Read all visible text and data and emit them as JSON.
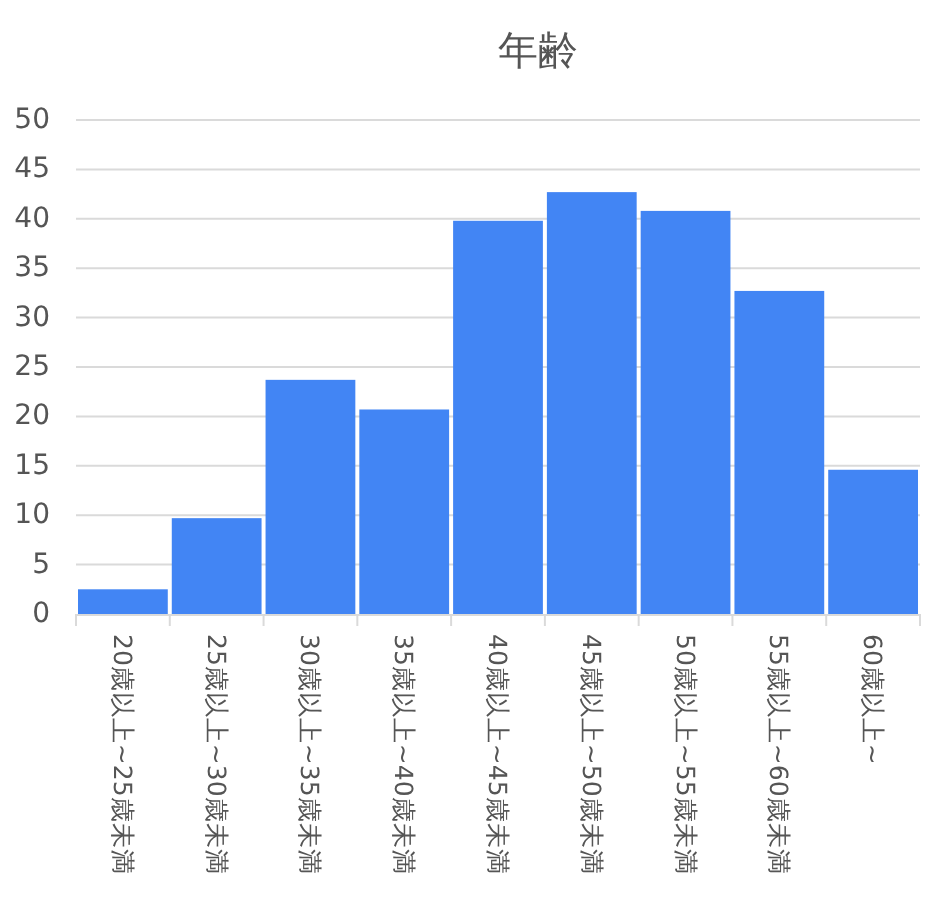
{
  "chart_data": {
    "type": "bar",
    "title": "年齢",
    "categories": [
      "20歳以上~25歳未満",
      "25歳以上~30歳未満",
      "30歳以上~35歳未満",
      "35歳以上~40歳未満",
      "40歳以上~45歳未満",
      "45歳以上~50歳未満",
      "50歳以上~55歳未満",
      "55歳以上~60歳未満",
      "60歳以上~"
    ],
    "values": [
      2.5,
      9.7,
      23.7,
      20.7,
      39.8,
      42.7,
      40.8,
      32.7,
      14.6
    ],
    "color": "#4285f4",
    "ylim": [
      0,
      50
    ],
    "yticks": [
      0,
      5,
      10,
      15,
      20,
      25,
      30,
      35,
      40,
      45,
      50
    ],
    "grid": "y"
  }
}
